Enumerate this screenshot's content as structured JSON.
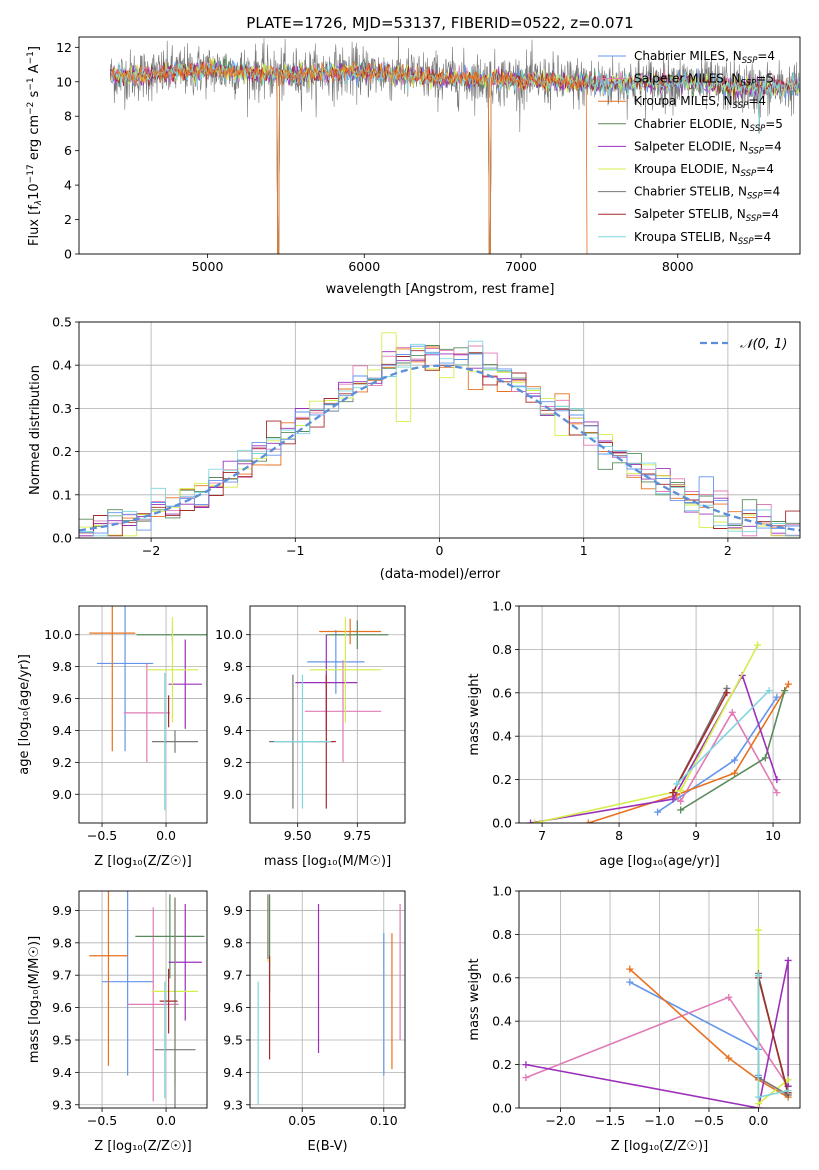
{
  "figure_title": "PLATE=1726, MJD=53137, FIBERID=0522, z=0.071",
  "colors": {
    "palette": [
      "#6495ED",
      "#E07BB7",
      "#E8711F",
      "#5A8A5A",
      "#9B30B8",
      "#D4EE4A",
      "#777777",
      "#A52A2A",
      "#7FD6DE"
    ],
    "gauss_line": "#5B8FD9"
  },
  "chart_data": [
    {
      "type": "line",
      "title": "PLATE=1726, MJD=53137, FIBERID=0522, z=0.071",
      "xlabel": "wavelength [Angstrom, rest frame]",
      "ylabel_parts": [
        "Flux [f",
        "λ",
        "10",
        "−17",
        " erg cm",
        "−2",
        " s",
        "−1",
        " A",
        "−1",
        "]"
      ],
      "xlim": [
        4180,
        8780
      ],
      "ylim": [
        0,
        12.6
      ],
      "xticks": [
        "5000",
        "6000",
        "7000",
        "8000"
      ],
      "yticks": [
        "0",
        "2",
        "4",
        "6",
        "8",
        "10",
        "12"
      ],
      "grid": false,
      "legend_position": "upper right",
      "legend": [
        {
          "base": "Chabrier MILES, N",
          "sub": "SSP",
          "tail": "=4"
        },
        {
          "base": "Salpeter MILES, N",
          "sub": "SSP",
          "tail": "=5"
        },
        {
          "base": "Kroupa MILES, N",
          "sub": "SSP",
          "tail": "=4"
        },
        {
          "base": "Chabrier ELODIE, N",
          "sub": "SSP",
          "tail": "=5"
        },
        {
          "base": "Salpeter ELODIE, N",
          "sub": "SSP",
          "tail": "=4"
        },
        {
          "base": "Kroupa ELODIE, N",
          "sub": "SSP",
          "tail": "=4"
        },
        {
          "base": "Chabrier STELIB, N",
          "sub": "SSP",
          "tail": "=4"
        },
        {
          "base": "Salpeter STELIB, N",
          "sub": "SSP",
          "tail": "=4"
        },
        {
          "base": "Kroupa STELIB, N",
          "sub": "SSP",
          "tail": "=4"
        }
      ],
      "features": {
        "x_start": 4380,
        "x_end": 8780,
        "continuum": [
          [
            4380,
            10.3
          ],
          [
            4600,
            10.4
          ],
          [
            5000,
            10.7
          ],
          [
            5500,
            10.4
          ],
          [
            6000,
            10.6
          ],
          [
            6500,
            10.2
          ],
          [
            7000,
            10.1
          ],
          [
            7500,
            9.9
          ],
          [
            8000,
            10.0
          ],
          [
            8500,
            9.6
          ],
          [
            8780,
            9.7
          ]
        ],
        "dips_to_zero": [
          [
            5450,
            8
          ],
          [
            6800,
            5
          ]
        ],
        "dip_to_seven": [
          [
            8520,
            6
          ]
        ],
        "orange_cutoff": 7420
      }
    },
    {
      "type": "step",
      "xlabel": "(data-model)/error",
      "ylabel": "Normed distribution",
      "xlim": [
        -2.5,
        2.5
      ],
      "ylim": [
        0,
        0.5
      ],
      "xticks": [
        "−2",
        "−1",
        "0",
        "1",
        "2"
      ],
      "yticks": [
        "0.0",
        "0.1",
        "0.2",
        "0.3",
        "0.4",
        "0.5"
      ],
      "grid": true,
      "legend": {
        "label": "𝒩(0, 1)",
        "style": "dashed"
      },
      "bin_width": 0.1,
      "bin_start": -2.5,
      "reference": "normal(0,1)"
    },
    {
      "type": "scatter",
      "xlabel": "Z [log₁₀(Z/Z☉)]",
      "ylabel": "age  [log₁₀(age/yr)]",
      "xlim": [
        -0.68,
        0.32
      ],
      "ylim": [
        8.82,
        10.18
      ],
      "xticks": [
        "−0.5",
        "0.0"
      ],
      "yticks": [
        "9.0",
        "9.2",
        "9.4",
        "9.6",
        "9.8",
        "10.0"
      ],
      "grid": true,
      "points": [
        {
          "x": -0.32,
          "y": 9.82,
          "xerr": 0.22,
          "yerr": 0.55
        },
        {
          "x": -0.15,
          "y": 9.51,
          "xerr": 0.18,
          "yerr": 0.31
        },
        {
          "x": -0.42,
          "y": 10.01,
          "xerr": 0.18,
          "yerr": 0.74
        },
        {
          "x": 0.05,
          "y": 10.0,
          "xerr": 0.28,
          "yerr": 0.04
        },
        {
          "x": 0.15,
          "y": 9.69,
          "xerr": 0.13,
          "yerr": 0.28
        },
        {
          "x": 0.05,
          "y": 9.78,
          "xerr": 0.2,
          "yerr": 0.33
        },
        {
          "x": 0.07,
          "y": 9.33,
          "xerr": 0.18,
          "yerr": 0.07
        },
        {
          "x": 0.02,
          "y": 9.52,
          "xerr": 0.0,
          "yerr": 0.1
        },
        {
          "x": -0.01,
          "y": 9.33,
          "xerr": 0.0,
          "yerr": 0.43
        }
      ]
    },
    {
      "type": "scatter",
      "xlabel": "mass [log₁₀(M/M☉)]",
      "ylabel": "",
      "xlim": [
        9.3,
        9.95
      ],
      "ylim": [
        8.82,
        10.18
      ],
      "xticks": [
        "9.50",
        "9.75"
      ],
      "yticks": [
        "9.0",
        "9.2",
        "9.4",
        "9.6",
        "9.8",
        "10.0"
      ],
      "grid": true,
      "points": [
        {
          "x": 9.66,
          "y": 9.83,
          "xerr": 0.12,
          "yerr": 0.2
        },
        {
          "x": 9.69,
          "y": 9.52,
          "xerr": 0.16,
          "yerr": 0.32
        },
        {
          "x": 9.72,
          "y": 10.02,
          "xerr": 0.13,
          "yerr": 0.08
        },
        {
          "x": 9.75,
          "y": 10.0,
          "xerr": 0.13,
          "yerr": 0.09
        },
        {
          "x": 9.62,
          "y": 9.7,
          "xerr": 0.13,
          "yerr": 0.3
        },
        {
          "x": 9.7,
          "y": 9.78,
          "xerr": 0.15,
          "yerr": 0.33
        },
        {
          "x": 9.48,
          "y": 9.33,
          "xerr": 0.1,
          "yerr": 0.42
        },
        {
          "x": 9.62,
          "y": 9.33,
          "xerr": 0.04,
          "yerr": 0.42
        },
        {
          "x": 9.52,
          "y": 9.33,
          "xerr": 0.12,
          "yerr": 0.42
        }
      ]
    },
    {
      "type": "line",
      "xlabel": "age  [log₁₀(age/yr)]",
      "ylabel": "mass weight",
      "xlim": [
        6.7,
        10.35
      ],
      "ylim": [
        0,
        1.0
      ],
      "xticks": [
        "7",
        "8",
        "9",
        "10"
      ],
      "yticks": [
        "0.0",
        "0.2",
        "0.4",
        "0.6",
        "0.8",
        "1.0"
      ],
      "grid": true,
      "series": [
        {
          "x": [
            8.5,
            9.5,
            10.05
          ],
          "y": [
            0.05,
            0.29,
            0.58
          ]
        },
        {
          "x": [
            8.7,
            8.8,
            9.47,
            10.05
          ],
          "y": [
            0.12,
            0.1,
            0.51,
            0.14
          ]
        },
        {
          "x": [
            7.6,
            8.75,
            9.5,
            10.2
          ],
          "y": [
            0.0,
            0.13,
            0.23,
            0.64
          ]
        },
        {
          "x": [
            8.8,
            9.9,
            10.15
          ],
          "y": [
            0.06,
            0.3,
            0.61
          ]
        },
        {
          "x": [
            6.85,
            8.7,
            9.6,
            10.05
          ],
          "y": [
            0.0,
            0.11,
            0.68,
            0.2
          ]
        },
        {
          "x": [
            6.9,
            8.8,
            9.8
          ],
          "y": [
            0.0,
            0.15,
            0.82
          ]
        },
        {
          "x": [
            8.7,
            9.4
          ],
          "y": [
            0.14,
            0.62
          ]
        },
        {
          "x": [
            8.7,
            9.4
          ],
          "y": [
            0.14,
            0.6
          ]
        },
        {
          "x": [
            8.75,
            9.95
          ],
          "y": [
            0.18,
            0.61
          ]
        }
      ]
    },
    {
      "type": "scatter",
      "xlabel": "Z [log₁₀(Z/Z☉)]",
      "ylabel": "mass [log₁₀(M/M☉)]",
      "xlim": [
        -0.68,
        0.32
      ],
      "ylim": [
        9.29,
        9.96
      ],
      "xticks": [
        "−0.5",
        "0.0"
      ],
      "yticks": [
        "9.3",
        "9.4",
        "9.5",
        "9.6",
        "9.7",
        "9.8",
        "9.9"
      ],
      "grid": true,
      "points": [
        {
          "x": -0.3,
          "y": 9.68,
          "xerr": 0.2,
          "yerr": 0.29
        },
        {
          "x": -0.1,
          "y": 9.61,
          "xerr": 0.2,
          "yerr": 0.3
        },
        {
          "x": -0.45,
          "y": 9.76,
          "xerr": 0.15,
          "yerr": 0.34
        },
        {
          "x": 0.03,
          "y": 9.82,
          "xerr": 0.27,
          "yerr": 0.13
        },
        {
          "x": 0.15,
          "y": 9.74,
          "xerr": 0.13,
          "yerr": 0.18
        },
        {
          "x": 0.07,
          "y": 9.65,
          "xerr": 0.18,
          "yerr": 0.29
        },
        {
          "x": 0.07,
          "y": 9.47,
          "xerr": 0.16,
          "yerr": 0.47
        },
        {
          "x": 0.02,
          "y": 9.62,
          "xerr": 0.07,
          "yerr": 0.1
        },
        {
          "x": -0.01,
          "y": 9.5,
          "xerr": 0.0,
          "yerr": 0.18
        }
      ]
    },
    {
      "type": "scatter",
      "xlabel": "E(B-V)",
      "ylabel": "",
      "xlim": [
        0.018,
        0.113
      ],
      "ylim": [
        9.29,
        9.96
      ],
      "xticks": [
        "0.05",
        "0.10"
      ],
      "yticks": [
        "9.3",
        "9.4",
        "9.5",
        "9.6",
        "9.7",
        "9.8",
        "9.9"
      ],
      "grid": true,
      "points": [
        {
          "x": 0.1,
          "y": 9.61,
          "xerr": 0,
          "yerr": 0.22
        },
        {
          "x": 0.11,
          "y": 9.71,
          "xerr": 0,
          "yerr": 0.21
        },
        {
          "x": 0.105,
          "y": 9.62,
          "xerr": 0,
          "yerr": 0.21
        },
        {
          "x": 0.03,
          "y": 9.8,
          "xerr": 0,
          "yerr": 0.15
        },
        {
          "x": 0.06,
          "y": 9.69,
          "xerr": 0,
          "yerr": 0.23
        },
        {
          "x": 0.029,
          "y": 9.84,
          "xerr": 0,
          "yerr": 0.1
        },
        {
          "x": 0.029,
          "y": 9.85,
          "xerr": 0,
          "yerr": 0.1
        },
        {
          "x": 0.03,
          "y": 9.6,
          "xerr": 0,
          "yerr": 0.16
        },
        {
          "x": 0.023,
          "y": 9.49,
          "xerr": 0,
          "yerr": 0.19
        }
      ]
    },
    {
      "type": "line",
      "xlabel": "Z [log₁₀(Z/Z☉)]",
      "ylabel": "mass weight",
      "xlim": [
        -2.42,
        0.42
      ],
      "ylim": [
        0,
        1.0
      ],
      "xticks": [
        "−2.0",
        "−1.5",
        "−1.0",
        "−0.5",
        "0.0"
      ],
      "yticks": [
        "0.0",
        "0.2",
        "0.4",
        "0.6",
        "0.8",
        "1.0"
      ],
      "grid": true,
      "series": [
        {
          "x": [
            -1.3,
            0.0,
            0.0
          ],
          "y": [
            0.58,
            0.27,
            0.15
          ]
        },
        {
          "x": [
            -2.35,
            -0.3,
            0.3
          ],
          "y": [
            0.14,
            0.51,
            0.1
          ]
        },
        {
          "x": [
            -1.3,
            -0.3,
            0.0,
            0.3
          ],
          "y": [
            0.64,
            0.23,
            0.13,
            0.05
          ]
        },
        {
          "x": [
            0.0,
            0.3
          ],
          "y": [
            0.61,
            0.06
          ]
        },
        {
          "x": [
            -2.35,
            0.0,
            0.3,
            0.3
          ],
          "y": [
            0.2,
            0.0,
            0.68,
            0.1
          ]
        },
        {
          "x": [
            0.0,
            0.0,
            0.3
          ],
          "y": [
            0.82,
            0.02,
            0.13
          ]
        },
        {
          "x": [
            0.0,
            0.0,
            0.3
          ],
          "y": [
            0.62,
            0.14,
            0.06
          ]
        },
        {
          "x": [
            0.0,
            0.3
          ],
          "y": [
            0.6,
            0.07
          ]
        },
        {
          "x": [
            0.0,
            0.0,
            0.3
          ],
          "y": [
            0.61,
            0.05,
            0.08
          ]
        }
      ]
    }
  ]
}
